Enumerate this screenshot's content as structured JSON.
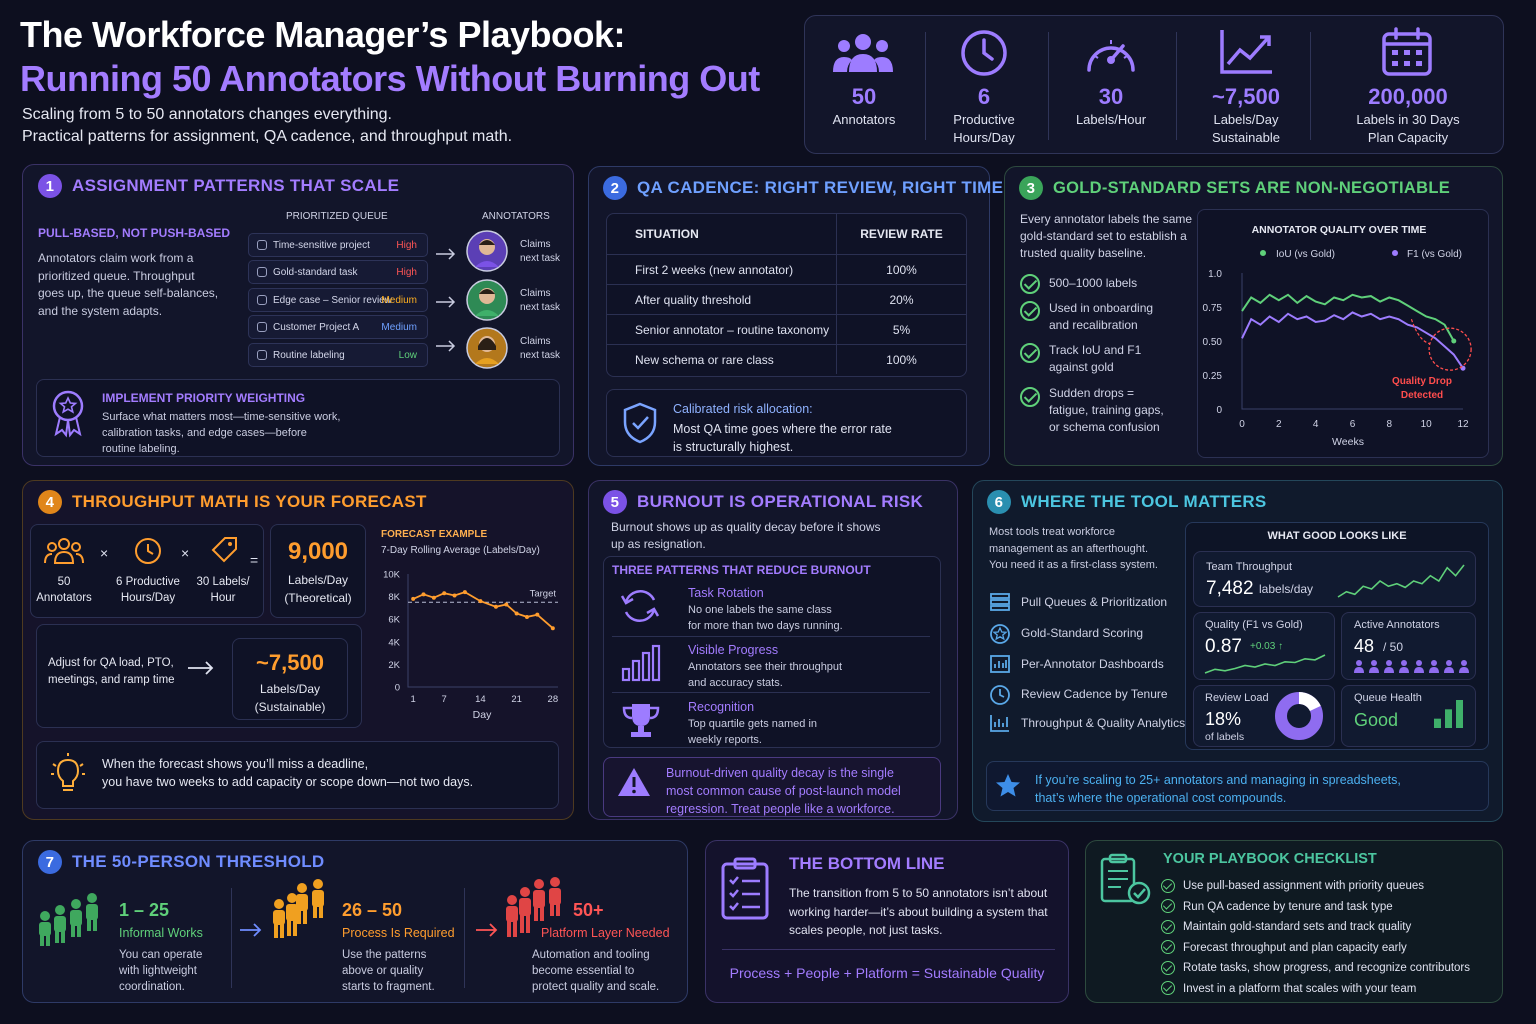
{
  "header": {
    "title_line1": "The Workforce Manager’s Playbook:",
    "title_line2": "Running 50 Annotators Without Burning Out",
    "subtitle_line1": "Scaling from 5 to 50 annotators changes everything.",
    "subtitle_line2": "Practical patterns for assignment, QA cadence, and throughput math."
  },
  "stats": [
    {
      "icon": "people-icon",
      "value": "50",
      "label": "Annotators",
      "label2": ""
    },
    {
      "icon": "clock-icon",
      "value": "6",
      "label": "Productive",
      "label2": "Hours/Day"
    },
    {
      "icon": "gauge-icon",
      "value": "30",
      "label": "Labels/Hour",
      "label2": ""
    },
    {
      "icon": "trend-icon",
      "value": "~7,500",
      "label": "Labels/Day",
      "label2": "Sustainable"
    },
    {
      "icon": "calendar-icon",
      "value": "200,000",
      "label": "Labels in 30 Days",
      "label2": "Plan Capacity"
    }
  ],
  "s1": {
    "num": "1",
    "title": "ASSIGNMENT PATTERNS THAT SCALE",
    "subtitle": "PULL-BASED, NOT PUSH-BASED",
    "body": [
      "Annotators claim work from a",
      "prioritized queue. Throughput",
      "goes up, the queue self-balances,",
      "and the system adapts."
    ],
    "queue_header": "PRIORITIZED QUEUE",
    "annotators_header": "ANNOTATORS",
    "queue": [
      {
        "label": "Time-sensitive project",
        "priority": "High"
      },
      {
        "label": "Gold-standard task",
        "priority": "High"
      },
      {
        "label": "Edge case – Senior review",
        "priority": "Medium"
      },
      {
        "label": "Customer Project A",
        "priority": "Medium"
      },
      {
        "label": "Routine labeling",
        "priority": "Low"
      }
    ],
    "claims": "Claims",
    "next_task": "next task",
    "callout_title": "IMPLEMENT PRIORITY WEIGHTING",
    "callout_body": [
      "Surface what matters most—time-sensitive work,",
      "calibration tasks, and edge cases—before",
      "routine labeling."
    ]
  },
  "s2": {
    "num": "2",
    "title": "QA CADENCE: RIGHT REVIEW, RIGHT TIME",
    "col1": "SITUATION",
    "col2": "REVIEW RATE",
    "rows": [
      {
        "situation": "First 2 weeks (new annotator)",
        "rate": "100%"
      },
      {
        "situation": "After quality threshold",
        "rate": "20%"
      },
      {
        "situation": "Senior annotator – routine taxonomy",
        "rate": "5%"
      },
      {
        "situation": "New schema or rare class",
        "rate": "100%"
      }
    ],
    "callout_title": "Calibrated risk allocation:",
    "callout_body": [
      "Most QA time goes where the error rate",
      "is structurally highest."
    ]
  },
  "s3": {
    "num": "3",
    "title": "GOLD-STANDARD SETS ARE NON-NEGOTIABLE",
    "intro": [
      "Every annotator labels the same",
      "gold-standard set to establish a",
      "trusted quality baseline."
    ],
    "checks": [
      [
        "500–1000 labels"
      ],
      [
        "Used in onboarding",
        "and recalibration"
      ],
      [
        "Track IoU and F1",
        "against gold"
      ],
      [
        "Sudden drops =",
        "fatigue, training gaps,",
        "or schema confusion"
      ]
    ]
  },
  "s4": {
    "num": "4",
    "title": "THROUGHPUT MATH IS YOUR FORECAST",
    "f1_val": "50",
    "f1_lbl": "Annotators",
    "f2_lbl1": "6 Productive",
    "f2_lbl2": "Hours/Day",
    "f3_lbl1": "30 Labels/",
    "f3_lbl2": "Hour",
    "times": "×",
    "equals": "=",
    "result_val": "9,000",
    "result_lbl1": "Labels/Day",
    "result_lbl2": "(Theoretical)",
    "adjust": [
      "Adjust for QA load, PTO,",
      "meetings, and ramp time"
    ],
    "sustain_val": "~7,500",
    "sustain_lbl1": "Labels/Day",
    "sustain_lbl2": "(Sustainable)",
    "tip": [
      "When the forecast shows you’ll miss a deadline,",
      "you have two weeks to add capacity or scope down—not two days."
    ]
  },
  "s5": {
    "num": "5",
    "title": "BURNOUT IS OPERATIONAL RISK",
    "intro": [
      "Burnout shows up as quality decay before it shows",
      "up as resignation."
    ],
    "patterns_title": "THREE PATTERNS THAT REDUCE BURNOUT",
    "patterns": [
      {
        "icon": "rotate-icon",
        "title": "Task Rotation",
        "body": [
          "No one labels the same class",
          "for more than two days running."
        ]
      },
      {
        "icon": "bars-icon",
        "title": "Visible Progress",
        "body": [
          "Annotators see their throughput",
          "and accuracy stats."
        ]
      },
      {
        "icon": "trophy-icon",
        "title": "Recognition",
        "body": [
          "Top quartile gets named in",
          "weekly reports."
        ]
      }
    ],
    "warning": [
      "Burnout-driven quality decay is the single",
      "most common cause of post-launch model",
      "regression. Treat people like a workforce."
    ]
  },
  "s6": {
    "num": "6",
    "title": "WHERE THE TOOL MATTERS",
    "intro": [
      "Most tools treat workforce",
      "management as an afterthought.",
      "You need it as a first-class system."
    ],
    "features": [
      {
        "icon": "list-icon",
        "label": "Pull Queues & Prioritization"
      },
      {
        "icon": "star-badge-icon",
        "label": "Gold-Standard Scoring"
      },
      {
        "icon": "dashboard-icon",
        "label": "Per-Annotator Dashboards"
      },
      {
        "icon": "clock-icon",
        "label": "Review Cadence by Tenure"
      },
      {
        "icon": "analytics-icon",
        "label": "Throughput & Quality Analytics"
      }
    ],
    "panel_title": "WHAT GOOD LOOKS LIKE",
    "throughput_lbl": "Team Throughput",
    "throughput_val": "7,482",
    "throughput_unit": "labels/day",
    "quality_lbl": "Quality (F1 vs Gold)",
    "quality_val": "0.87",
    "quality_delta": "+0.03 ↑",
    "active_lbl": "Active Annotators",
    "active_val": "48",
    "active_total": "/ 50",
    "review_lbl": "Review Load",
    "review_val": "18%",
    "review_unit": "of labels",
    "review_fraction": 0.18,
    "queue_lbl": "Queue Health",
    "queue_val": "Good",
    "callout": [
      "If you’re scaling to 25+ annotators and managing in spreadsheets,",
      "that’s where the operational cost compounds."
    ]
  },
  "s7": {
    "num": "7",
    "title": "THE 50-PERSON THRESHOLD",
    "tiers": [
      {
        "range": "1 – 25",
        "name": "Informal Works",
        "body": [
          "You can operate",
          "with lightweight",
          "coordination."
        ]
      },
      {
        "range": "26 – 50",
        "name": "Process Is Required",
        "body": [
          "Use the patterns",
          "above or quality",
          "starts to fragment."
        ]
      },
      {
        "range": "50+",
        "name": "Platform Layer Needed",
        "body": [
          "Automation and tooling",
          "become essential to",
          "protect quality and scale."
        ]
      }
    ]
  },
  "bottom": {
    "title": "THE BOTTOM LINE",
    "body": [
      "The transition from 5 to 50 annotators isn’t about",
      "working harder—it’s about building a system that",
      "scales people, not just tasks."
    ],
    "formula": "Process + People + Platform = Sustainable Quality"
  },
  "checklist": {
    "title": "YOUR PLAYBOOK CHECKLIST",
    "items": [
      "Use pull-based assignment with priority queues",
      "Run QA cadence by tenure and task type",
      "Maintain gold-standard sets and track quality",
      "Forecast throughput and plan capacity early",
      "Rotate tasks, show progress, and recognize contributors",
      "Invest in a platform that scales with your team"
    ]
  },
  "chart_data": [
    {
      "type": "line",
      "title": "ANNOTATOR QUALITY OVER TIME",
      "xlabel": "Weeks",
      "ylabel": "",
      "xlim": [
        0,
        12
      ],
      "ylim": [
        0,
        1.0
      ],
      "xticks": [
        "0",
        "2",
        "4",
        "6",
        "8",
        "10",
        "12"
      ],
      "yticks": [
        "0",
        "0.25",
        "0.50",
        "0.75",
        "1.0"
      ],
      "legend": "top",
      "annotation": [
        "Quality Drop",
        "Detected"
      ],
      "series": [
        {
          "name": "IoU (vs Gold)",
          "color": "#5fd07a",
          "x": [
            0,
            0.5,
            1,
            1.5,
            2,
            2.5,
            3,
            3.5,
            4,
            4.5,
            5,
            5.5,
            6,
            6.5,
            7,
            7.5,
            8,
            8.5,
            9,
            9.5,
            10,
            10.5,
            11,
            11.5
          ],
          "values": [
            0.72,
            0.82,
            0.78,
            0.84,
            0.8,
            0.84,
            0.78,
            0.83,
            0.79,
            0.77,
            0.82,
            0.8,
            0.84,
            0.82,
            0.83,
            0.79,
            0.82,
            0.8,
            0.76,
            0.72,
            0.68,
            0.66,
            0.62,
            0.5
          ]
        },
        {
          "name": "F1 (vs Gold)",
          "color": "#9d7cff",
          "x": [
            0,
            0.5,
            1,
            1.5,
            2,
            2.5,
            3,
            3.5,
            4,
            4.5,
            5,
            5.5,
            6,
            6.5,
            7,
            7.5,
            8,
            8.5,
            9,
            9.5,
            10,
            10.5,
            11,
            11.5,
            12
          ],
          "values": [
            0.52,
            0.66,
            0.62,
            0.68,
            0.64,
            0.7,
            0.66,
            0.68,
            0.64,
            0.65,
            0.69,
            0.66,
            0.71,
            0.68,
            0.7,
            0.66,
            0.68,
            0.66,
            0.62,
            0.6,
            0.56,
            0.52,
            0.46,
            0.4,
            0.3
          ]
        }
      ]
    },
    {
      "type": "line",
      "title": "FORECAST EXAMPLE",
      "subtitle": "7-Day Rolling Average (Labels/Day)",
      "xlabel": "Day",
      "ylabel": "",
      "xlim": [
        0,
        29
      ],
      "ylim": [
        0,
        10000
      ],
      "xticks": [
        "1",
        "7",
        "14",
        "21",
        "28"
      ],
      "yticks": [
        "0",
        "2K",
        "4K",
        "6K",
        "8K",
        "10K"
      ],
      "target_label": "Target",
      "target": 7500,
      "series": [
        {
          "name": "",
          "color": "#ff9d2e",
          "x": [
            1,
            3,
            5,
            7,
            9,
            11,
            14,
            17,
            19,
            21,
            23,
            25,
            28
          ],
          "values": [
            7800,
            8200,
            7900,
            8300,
            8100,
            8400,
            7600,
            7100,
            7300,
            6500,
            6200,
            6400,
            5200
          ]
        }
      ]
    },
    {
      "type": "line",
      "title": "",
      "series": [
        {
          "name": "",
          "color": "#5fd07a",
          "values": [
            3,
            4,
            3.5,
            5,
            4.5,
            6,
            5,
            5.5,
            4.8,
            6,
            5.5,
            7,
            6,
            8.5,
            7,
            9
          ]
        }
      ]
    },
    {
      "type": "line",
      "title": "",
      "series": [
        {
          "name": "",
          "color": "#5fd07a",
          "values": [
            3,
            4,
            3.6,
            4.2,
            5,
            4.6,
            5.4,
            5,
            6,
            5.8,
            6.8,
            6.5,
            7.8
          ]
        }
      ]
    },
    {
      "type": "bar",
      "title": "",
      "categories": [
        "1",
        "2",
        "3"
      ],
      "values": [
        1,
        2,
        3
      ]
    }
  ]
}
